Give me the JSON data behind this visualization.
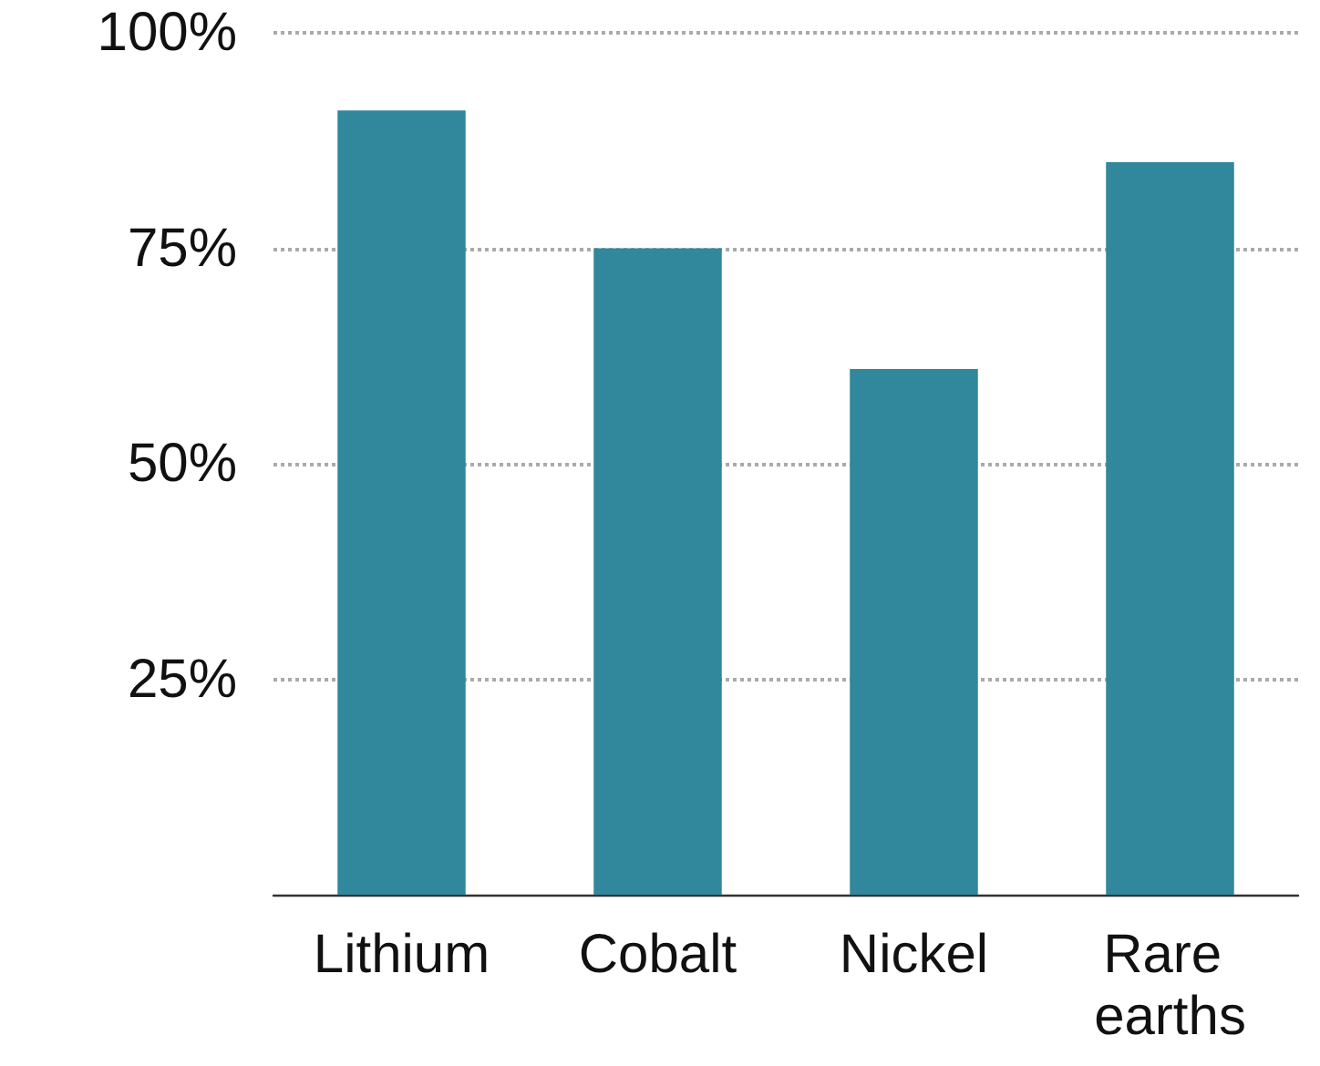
{
  "chart_data": {
    "type": "bar",
    "categories": [
      "Lithium",
      "Cobalt",
      "Nickel",
      "Rare earths"
    ],
    "values": [
      91,
      75,
      61,
      85
    ],
    "color": "#31879b",
    "ylim": [
      0,
      100
    ],
    "yticks": [
      {
        "value": 25,
        "label": "25%"
      },
      {
        "value": 50,
        "label": "50%"
      },
      {
        "value": 75,
        "label": "75%"
      },
      {
        "value": 100,
        "label": "100%"
      }
    ],
    "grid": "y"
  }
}
